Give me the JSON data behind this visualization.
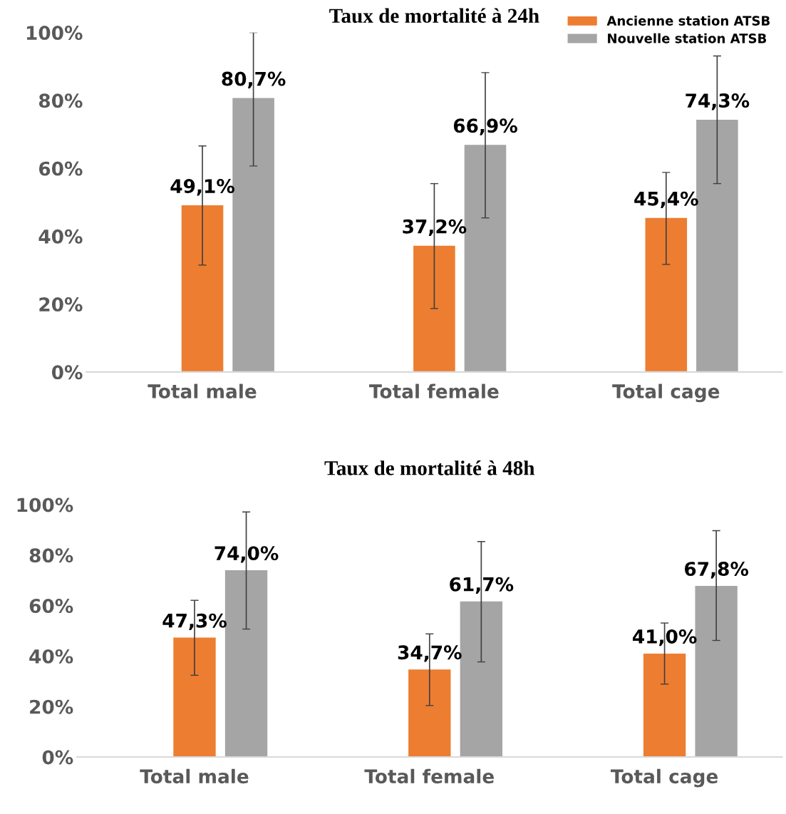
{
  "chart_data": [
    {
      "type": "bar",
      "title": "Taux de mortalité à 24h",
      "categories": [
        "Total male",
        "Total female",
        "Total cage"
      ],
      "series": [
        {
          "name": "Ancienne station ATSB",
          "color": "#ed7d31",
          "values": [
            49.1,
            37.2,
            45.4
          ],
          "value_labels": [
            "49,1%",
            "37,2%",
            "45,4%"
          ],
          "errors": [
            [
              31.5,
              66.6
            ],
            [
              18.7,
              55.5
            ],
            [
              31.7,
              58.8
            ]
          ]
        },
        {
          "name": "Nouvelle station ATSB",
          "color": "#a5a5a5",
          "values": [
            80.7,
            66.9,
            74.3
          ],
          "value_labels": [
            "80,7%",
            "66,9%",
            "74,3%"
          ],
          "errors": [
            [
              60.7,
              100
            ],
            [
              45.4,
              88.2
            ],
            [
              55.5,
              93.1
            ]
          ]
        }
      ],
      "ylim": [
        0,
        100
      ],
      "yticks": [
        {
          "value": 0,
          "label": "0%"
        },
        {
          "value": 20,
          "label": "20%"
        },
        {
          "value": 40,
          "label": "40%"
        },
        {
          "value": 60,
          "label": "60%"
        },
        {
          "value": 80,
          "label": "80%"
        },
        {
          "value": 100,
          "label": "100%"
        }
      ],
      "grid": false,
      "legend": "top right"
    },
    {
      "type": "bar",
      "title": "Taux de mortalité à 48h",
      "categories": [
        "Total male",
        "Total female",
        "Total cage"
      ],
      "series": [
        {
          "color": "#ed7d31",
          "values": [
            47.3,
            34.7,
            41.0
          ],
          "value_labels": [
            "47,3%",
            "34,7%",
            "41,0%"
          ],
          "errors": [
            [
              32.4,
              62.1
            ],
            [
              20.4,
              48.8
            ],
            [
              28.9,
              53.1
            ]
          ]
        },
        {
          "color": "#a5a5a5",
          "values": [
            74.0,
            61.7,
            67.8
          ],
          "value_labels": [
            "74,0%",
            "61,7%",
            "67,8%"
          ],
          "errors": [
            [
              50.7,
              97.1
            ],
            [
              37.7,
              85.4
            ],
            [
              46.2,
              89.7
            ]
          ]
        }
      ],
      "ylim": [
        0,
        100
      ],
      "yticks": [
        {
          "value": 0,
          "label": "0%"
        },
        {
          "value": 20,
          "label": "20%"
        },
        {
          "value": 40,
          "label": "40%"
        },
        {
          "value": 60,
          "label": "60%"
        },
        {
          "value": 80,
          "label": "80%"
        },
        {
          "value": 100,
          "label": "100%"
        }
      ],
      "grid": false
    }
  ]
}
